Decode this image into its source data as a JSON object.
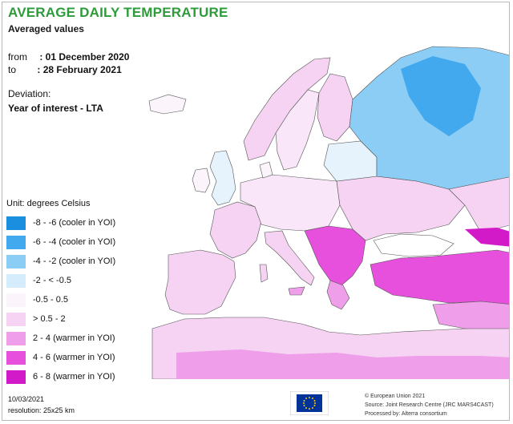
{
  "title": "AVERAGE DAILY TEMPERATURE",
  "subtitle": "Averaged values",
  "period": {
    "from_label": "from",
    "from_value": ": 01 December 2020",
    "to_label": "to",
    "to_value": ": 28 February 2021"
  },
  "deviation": {
    "label": "Deviation:",
    "value": "Year of interest - LTA"
  },
  "legend": {
    "unit": "Unit:  degrees Celsius",
    "items": [
      {
        "label": "-8 - -6 (cooler in YOI)",
        "color": "#1a8fe0"
      },
      {
        "label": "-6 - -4 (cooler in YOI)",
        "color": "#43a9ee"
      },
      {
        "label": "-4 - -2 (cooler in YOI)",
        "color": "#8ccdf5"
      },
      {
        "label": "-2 - < -0.5",
        "color": "#d4ecfb"
      },
      {
        "label": "-0.5 - 0.5",
        "color": "#fbf4fb"
      },
      {
        "label": "> 0.5 - 2",
        "color": "#f6d2f3"
      },
      {
        "label": "2 - 4 (warmer in YOI)",
        "color": "#ef9ee9"
      },
      {
        "label": "4 - 6 (warmer in YOI)",
        "color": "#e650dc"
      },
      {
        "label": "6 - 8 (warmer in YOI)",
        "color": "#d21ac8"
      }
    ]
  },
  "colors": {
    "title": "#2e9b3a",
    "border": "#555555",
    "sea": "#ffffff"
  },
  "footer": {
    "date": "10/03/2021",
    "resolution": "resolution:  25x25 km",
    "credit_line_1": "© European Union 2021",
    "credit_line_2": "Source: Joint Research Centre (JRC MARS4CAST)",
    "credit_line_3": "Processed by: Alterra consortium"
  },
  "logo_icon": "eu-flag-icon"
}
